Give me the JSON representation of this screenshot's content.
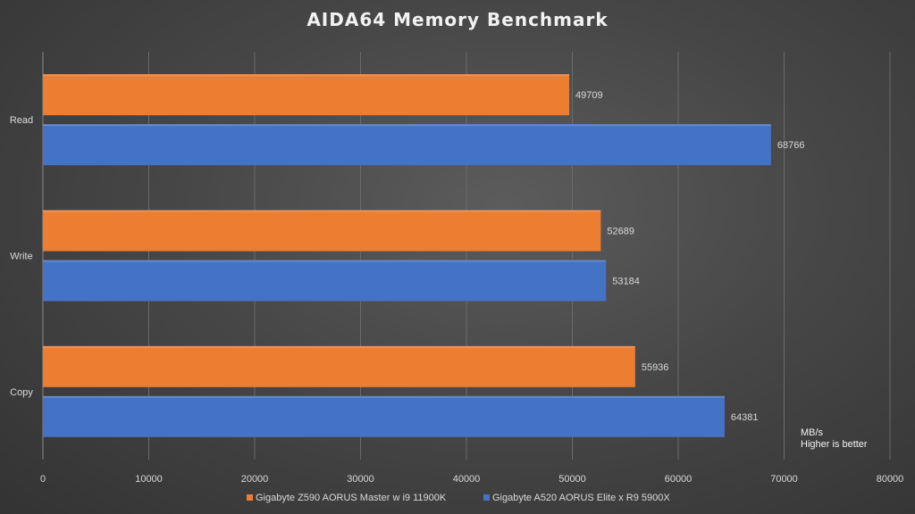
{
  "chart_data": {
    "type": "bar",
    "orientation": "horizontal",
    "title": "AIDA64  Memory  Benchmark",
    "categories": [
      "Read",
      "Write",
      "Copy"
    ],
    "series": [
      {
        "name": "Gigabyte Z590 AORUS Master w i9 11900K",
        "color": "#ed7d31",
        "values": [
          49709,
          52689,
          55936
        ]
      },
      {
        "name": "Gigabyte A520 AORUS Elite x R9 5900X",
        "color": "#4472c4",
        "values": [
          68766,
          53184,
          64381
        ]
      }
    ],
    "xlim": [
      0,
      80000
    ],
    "xticks": [
      0,
      10000,
      20000,
      30000,
      40000,
      50000,
      60000,
      70000,
      80000
    ],
    "grid": true,
    "legend_position": "bottom",
    "annotations": [
      "MB/s",
      "Higher is better"
    ]
  }
}
